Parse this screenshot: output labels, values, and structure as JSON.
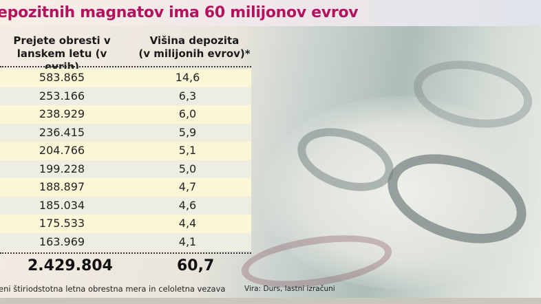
{
  "title": "epozitnih magnatov ima 60 milijonov evrov",
  "chart_data": {
    "type": "table",
    "columns": [
      "Prejete obresti v lanskem letu (v evrih)",
      "Višina depozita (v milijonih evrov)*"
    ],
    "rows": [
      [
        "583.865",
        "14,6"
      ],
      [
        "253.166",
        "6,3"
      ],
      [
        "238.929",
        "6,0"
      ],
      [
        "236.415",
        "5,9"
      ],
      [
        "204.766",
        "5,1"
      ],
      [
        "199.228",
        "5,0"
      ],
      [
        "188.897",
        "4,7"
      ],
      [
        "185.034",
        "4,6"
      ],
      [
        "175.533",
        "4,4"
      ],
      [
        "163.969",
        "4,1"
      ]
    ],
    "totals": [
      "2.429.804",
      "60,7"
    ]
  },
  "header": {
    "col1_line1": "Prejete obresti v",
    "col1_line2": "lanskem letu (v evrih)",
    "col2_line1": "Višina depozita",
    "col2_line2": "(v milijonih evrov)*"
  },
  "footnote": "eni štiriodstotna letna obrestna mera in celoletna vezava",
  "source": "Vira: Durs, lastni izračuni",
  "colors": {
    "title": "#b4125e",
    "row_odd": "#fbf6d6",
    "row_even": "#edede2"
  },
  "background_image": "euro-banknotes-500"
}
